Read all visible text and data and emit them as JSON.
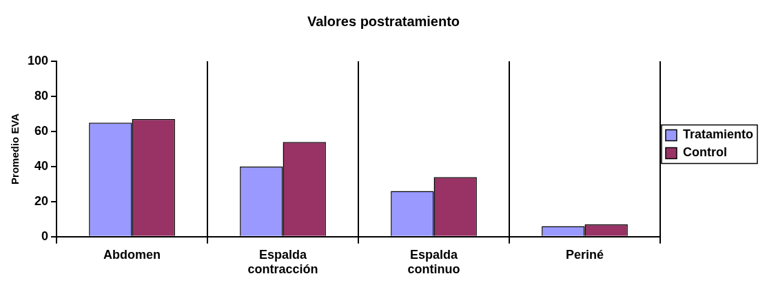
{
  "chart_data": {
    "type": "bar",
    "title": "Valores postratamiento",
    "ylabel": "Promedio EVA",
    "categories": [
      "Abdomen",
      "Espalda contracción",
      "Espalda continuo",
      "Periné"
    ],
    "series": [
      {
        "name": "Tratamiento",
        "color": "#9999ff",
        "values": [
          65,
          40,
          26,
          6
        ]
      },
      {
        "name": "Control",
        "color": "#993366",
        "values": [
          67,
          54,
          34,
          7
        ]
      }
    ],
    "ylim": [
      0,
      100
    ],
    "yticks": [
      0,
      20,
      40,
      60,
      80,
      100
    ],
    "grid": "x",
    "legend": "right"
  }
}
